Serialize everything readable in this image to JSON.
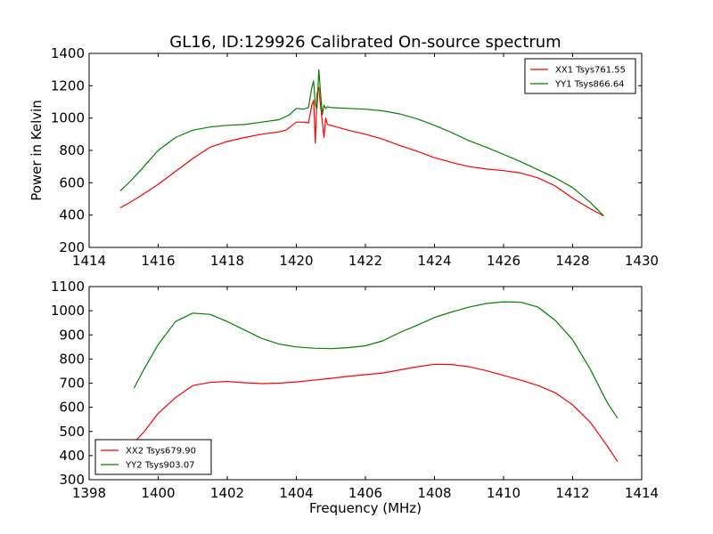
{
  "title": "GL16, ID:129926 Calibrated On-source spectrum",
  "xlabel": "Frequency (MHz)",
  "ylabel": "Power in Kelvin",
  "colors": {
    "XX": "#ff0000",
    "YY": "#008000",
    "axes": "#000000",
    "background": "#ffffff"
  },
  "chart_data": [
    {
      "type": "line",
      "title": "GL16, ID:129926 Calibrated On-source spectrum",
      "xlabel": "",
      "ylabel": "Power in Kelvin",
      "xlim": [
        1414,
        1430
      ],
      "ylim": [
        200,
        1400
      ],
      "xticks": [
        1414,
        1416,
        1418,
        1420,
        1422,
        1424,
        1426,
        1428,
        1430
      ],
      "yticks": [
        200,
        400,
        600,
        800,
        1000,
        1200,
        1400
      ],
      "grid": false,
      "legend_position": "top-right",
      "series": [
        {
          "name": "XX1 Tsys761.55",
          "color": "#ff0000",
          "x": [
            1414.9,
            1415.2,
            1415.5,
            1416.0,
            1416.5,
            1417.0,
            1417.5,
            1418.0,
            1418.5,
            1419.0,
            1419.5,
            1419.7,
            1419.85,
            1420.0,
            1420.2,
            1420.35,
            1420.45,
            1420.5,
            1420.55,
            1420.6,
            1420.65,
            1420.7,
            1420.75,
            1420.8,
            1420.85,
            1420.9,
            1421.0,
            1421.5,
            1422.0,
            1422.5,
            1423.0,
            1423.5,
            1424.0,
            1424.5,
            1425.0,
            1425.5,
            1426.0,
            1426.5,
            1427.0,
            1427.5,
            1428.0,
            1428.5,
            1428.9
          ],
          "y": [
            445,
            480,
            520,
            590,
            670,
            750,
            820,
            855,
            880,
            900,
            915,
            925,
            950,
            975,
            975,
            970,
            1080,
            1110,
            845,
            1150,
            1190,
            1080,
            980,
            880,
            1000,
            960,
            955,
            925,
            900,
            870,
            830,
            795,
            755,
            725,
            700,
            685,
            675,
            660,
            630,
            580,
            505,
            440,
            395
          ]
        },
        {
          "name": "YY1 Tsys866.64",
          "color": "#008000",
          "x": [
            1414.9,
            1415.2,
            1415.5,
            1416.0,
            1416.5,
            1417.0,
            1417.5,
            1418.0,
            1418.5,
            1419.0,
            1419.5,
            1419.8,
            1420.0,
            1420.2,
            1420.35,
            1420.45,
            1420.5,
            1420.55,
            1420.6,
            1420.65,
            1420.7,
            1420.75,
            1420.8,
            1420.85,
            1420.9,
            1421.0,
            1421.5,
            1422.0,
            1422.5,
            1423.0,
            1423.5,
            1424.0,
            1424.5,
            1425.0,
            1425.5,
            1426.0,
            1426.5,
            1427.0,
            1427.5,
            1428.0,
            1428.5,
            1428.9
          ],
          "y": [
            550,
            610,
            680,
            800,
            880,
            925,
            945,
            955,
            960,
            975,
            990,
            1020,
            1060,
            1055,
            1065,
            1190,
            1230,
            1080,
            1060,
            1300,
            1160,
            1020,
            1080,
            1060,
            1070,
            1065,
            1060,
            1055,
            1045,
            1025,
            995,
            955,
            910,
            860,
            820,
            775,
            730,
            680,
            630,
            570,
            480,
            395
          ]
        }
      ]
    },
    {
      "type": "line",
      "title": "",
      "xlabel": "Frequency (MHz)",
      "ylabel": "",
      "xlim": [
        1398,
        1414
      ],
      "ylim": [
        300,
        1100
      ],
      "xticks": [
        1398,
        1400,
        1402,
        1404,
        1406,
        1408,
        1410,
        1412,
        1414
      ],
      "yticks": [
        300,
        400,
        500,
        600,
        700,
        800,
        900,
        1000,
        1100
      ],
      "grid": false,
      "legend_position": "bottom-left",
      "series": [
        {
          "name": "XX2 Tsys679.90",
          "color": "#ff0000",
          "x": [
            1399.3,
            1399.6,
            1400.0,
            1400.5,
            1401.0,
            1401.5,
            1402.0,
            1402.5,
            1403.0,
            1403.5,
            1404.0,
            1404.5,
            1405.0,
            1405.5,
            1406.0,
            1406.5,
            1407.0,
            1407.5,
            1408.0,
            1408.5,
            1409.0,
            1409.5,
            1410.0,
            1410.5,
            1411.0,
            1411.5,
            1412.0,
            1412.5,
            1413.0,
            1413.3
          ],
          "y": [
            455,
            500,
            575,
            640,
            690,
            703,
            707,
            702,
            698,
            700,
            705,
            712,
            720,
            728,
            735,
            742,
            755,
            768,
            778,
            777,
            768,
            752,
            732,
            712,
            690,
            660,
            610,
            540,
            440,
            375
          ]
        },
        {
          "name": "YY2 Tsys903.07",
          "color": "#008000",
          "x": [
            1399.3,
            1399.6,
            1400.0,
            1400.5,
            1401.0,
            1401.5,
            1402.0,
            1402.5,
            1403.0,
            1403.5,
            1404.0,
            1404.5,
            1405.0,
            1405.5,
            1406.0,
            1406.5,
            1407.0,
            1407.5,
            1408.0,
            1408.5,
            1409.0,
            1409.5,
            1410.0,
            1410.5,
            1411.0,
            1411.5,
            1412.0,
            1412.5,
            1413.0,
            1413.3
          ],
          "y": [
            680,
            760,
            860,
            955,
            990,
            985,
            955,
            920,
            885,
            862,
            850,
            845,
            843,
            847,
            855,
            875,
            910,
            940,
            972,
            995,
            1015,
            1030,
            1037,
            1035,
            1015,
            960,
            880,
            760,
            620,
            555
          ]
        }
      ]
    }
  ]
}
